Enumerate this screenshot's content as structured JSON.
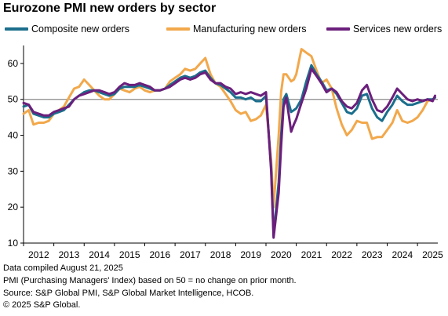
{
  "title": "Eurozone PMI new orders by sector",
  "chart_data": {
    "type": "line",
    "title": "Eurozone PMI new orders by sector",
    "xlabel": "",
    "ylabel": "",
    "x_range": [
      2012.0,
      2025.67
    ],
    "ylim": [
      10,
      65
    ],
    "y_ticks": [
      10,
      20,
      30,
      40,
      50,
      60
    ],
    "x_ticks": [
      "2012",
      "2013",
      "2014",
      "2015",
      "2016",
      "2017",
      "2018",
      "2019",
      "2020",
      "2021",
      "2022",
      "2023",
      "2024",
      "2025"
    ],
    "reference_line": 50,
    "grid": false,
    "legend_position": "top",
    "series": [
      {
        "name": "Composite new orders",
        "color": "#1b6e8c",
        "points": [
          [
            2012.0,
            48
          ],
          [
            2012.17,
            48.5
          ],
          [
            2012.33,
            46
          ],
          [
            2012.5,
            45.5
          ],
          [
            2012.67,
            45
          ],
          [
            2012.83,
            45
          ],
          [
            2013.0,
            46
          ],
          [
            2013.17,
            46.5
          ],
          [
            2013.33,
            47
          ],
          [
            2013.5,
            48.5
          ],
          [
            2013.67,
            50
          ],
          [
            2013.83,
            51
          ],
          [
            2014.0,
            52
          ],
          [
            2014.17,
            52.5
          ],
          [
            2014.33,
            52.5
          ],
          [
            2014.5,
            52
          ],
          [
            2014.67,
            51.5
          ],
          [
            2014.83,
            51
          ],
          [
            2015.0,
            51.5
          ],
          [
            2015.17,
            53
          ],
          [
            2015.33,
            53.5
          ],
          [
            2015.5,
            53.5
          ],
          [
            2015.67,
            53.5
          ],
          [
            2015.83,
            54
          ],
          [
            2016.0,
            53.5
          ],
          [
            2016.17,
            53
          ],
          [
            2016.33,
            52.5
          ],
          [
            2016.5,
            52.5
          ],
          [
            2016.67,
            53
          ],
          [
            2016.83,
            54
          ],
          [
            2017.0,
            55
          ],
          [
            2017.17,
            56
          ],
          [
            2017.33,
            56.5
          ],
          [
            2017.5,
            56
          ],
          [
            2017.67,
            56.5
          ],
          [
            2017.83,
            57.5
          ],
          [
            2018.0,
            58
          ],
          [
            2018.17,
            56
          ],
          [
            2018.33,
            54.5
          ],
          [
            2018.5,
            54
          ],
          [
            2018.67,
            53
          ],
          [
            2018.83,
            52
          ],
          [
            2019.0,
            50.5
          ],
          [
            2019.17,
            50.5
          ],
          [
            2019.33,
            50
          ],
          [
            2019.5,
            50.5
          ],
          [
            2019.67,
            49.5
          ],
          [
            2019.83,
            49.5
          ],
          [
            2020.0,
            51
          ],
          [
            2020.17,
            31
          ],
          [
            2020.25,
            12
          ],
          [
            2020.42,
            27
          ],
          [
            2020.5,
            40
          ],
          [
            2020.58,
            50
          ],
          [
            2020.67,
            51.5
          ],
          [
            2020.83,
            46.5
          ],
          [
            2020.92,
            47
          ],
          [
            2021.0,
            47.5
          ],
          [
            2021.17,
            50
          ],
          [
            2021.33,
            55
          ],
          [
            2021.5,
            59.5
          ],
          [
            2021.67,
            57
          ],
          [
            2021.83,
            55
          ],
          [
            2022.0,
            52.5
          ],
          [
            2022.17,
            53
          ],
          [
            2022.33,
            51.5
          ],
          [
            2022.5,
            49
          ],
          [
            2022.67,
            46.5
          ],
          [
            2022.83,
            46
          ],
          [
            2023.0,
            47.5
          ],
          [
            2023.17,
            51
          ],
          [
            2023.33,
            51.5
          ],
          [
            2023.5,
            47.5
          ],
          [
            2023.67,
            45
          ],
          [
            2023.83,
            44
          ],
          [
            2024.0,
            46.5
          ],
          [
            2024.17,
            48.5
          ],
          [
            2024.33,
            51
          ],
          [
            2024.5,
            49.5
          ],
          [
            2024.67,
            48.5
          ],
          [
            2024.83,
            48.5
          ],
          [
            2025.0,
            49
          ],
          [
            2025.17,
            49.5
          ],
          [
            2025.33,
            50
          ],
          [
            2025.5,
            50
          ],
          [
            2025.58,
            50.5
          ]
        ]
      },
      {
        "name": "Manufacturing new orders",
        "color": "#f2a84b",
        "points": [
          [
            2012.0,
            46
          ],
          [
            2012.17,
            47
          ],
          [
            2012.33,
            43
          ],
          [
            2012.5,
            43.5
          ],
          [
            2012.67,
            43.5
          ],
          [
            2012.83,
            44
          ],
          [
            2013.0,
            46
          ],
          [
            2013.17,
            47
          ],
          [
            2013.33,
            48
          ],
          [
            2013.5,
            50.5
          ],
          [
            2013.67,
            53
          ],
          [
            2013.83,
            53.5
          ],
          [
            2014.0,
            55.5
          ],
          [
            2014.17,
            54
          ],
          [
            2014.33,
            52.5
          ],
          [
            2014.5,
            51
          ],
          [
            2014.67,
            50
          ],
          [
            2014.83,
            50
          ],
          [
            2015.0,
            51.5
          ],
          [
            2015.17,
            53
          ],
          [
            2015.33,
            52.5
          ],
          [
            2015.5,
            52
          ],
          [
            2015.67,
            53
          ],
          [
            2015.83,
            53.5
          ],
          [
            2016.0,
            52.5
          ],
          [
            2016.17,
            52
          ],
          [
            2016.33,
            52.5
          ],
          [
            2016.5,
            52.5
          ],
          [
            2016.67,
            53
          ],
          [
            2016.83,
            55
          ],
          [
            2017.0,
            56
          ],
          [
            2017.17,
            57
          ],
          [
            2017.33,
            58.5
          ],
          [
            2017.5,
            58
          ],
          [
            2017.67,
            58.5
          ],
          [
            2017.83,
            60
          ],
          [
            2018.0,
            61.5
          ],
          [
            2018.17,
            57
          ],
          [
            2018.33,
            54.5
          ],
          [
            2018.5,
            53.5
          ],
          [
            2018.67,
            51.5
          ],
          [
            2018.83,
            49.5
          ],
          [
            2019.0,
            47
          ],
          [
            2019.17,
            46
          ],
          [
            2019.33,
            46.5
          ],
          [
            2019.5,
            44
          ],
          [
            2019.67,
            44.5
          ],
          [
            2019.83,
            45.5
          ],
          [
            2020.0,
            48.5
          ],
          [
            2020.17,
            33
          ],
          [
            2020.25,
            20
          ],
          [
            2020.42,
            40
          ],
          [
            2020.5,
            52
          ],
          [
            2020.58,
            57
          ],
          [
            2020.67,
            57
          ],
          [
            2020.83,
            55
          ],
          [
            2020.92,
            55.5
          ],
          [
            2021.0,
            57
          ],
          [
            2021.17,
            64
          ],
          [
            2021.33,
            63
          ],
          [
            2021.5,
            62
          ],
          [
            2021.67,
            58
          ],
          [
            2021.83,
            54.5
          ],
          [
            2022.0,
            55.5
          ],
          [
            2022.17,
            53
          ],
          [
            2022.33,
            47.5
          ],
          [
            2022.5,
            43
          ],
          [
            2022.67,
            40
          ],
          [
            2022.83,
            41.5
          ],
          [
            2023.0,
            44
          ],
          [
            2023.17,
            43.5
          ],
          [
            2023.33,
            43.5
          ],
          [
            2023.5,
            39
          ],
          [
            2023.67,
            39.5
          ],
          [
            2023.83,
            39.5
          ],
          [
            2024.0,
            41.5
          ],
          [
            2024.17,
            43.5
          ],
          [
            2024.33,
            47
          ],
          [
            2024.5,
            44
          ],
          [
            2024.67,
            43.5
          ],
          [
            2024.83,
            44
          ],
          [
            2025.0,
            45
          ],
          [
            2025.17,
            47
          ],
          [
            2025.33,
            49.5
          ],
          [
            2025.5,
            50
          ],
          [
            2025.58,
            50.5
          ]
        ]
      },
      {
        "name": "Services new orders",
        "color": "#6b1f7c",
        "points": [
          [
            2012.0,
            49
          ],
          [
            2012.17,
            48.5
          ],
          [
            2012.33,
            46.5
          ],
          [
            2012.5,
            46
          ],
          [
            2012.67,
            45.5
          ],
          [
            2012.83,
            45.5
          ],
          [
            2013.0,
            46.5
          ],
          [
            2013.17,
            47
          ],
          [
            2013.33,
            47.5
          ],
          [
            2013.5,
            48
          ],
          [
            2013.67,
            50
          ],
          [
            2013.83,
            51
          ],
          [
            2014.0,
            51.5
          ],
          [
            2014.17,
            52
          ],
          [
            2014.33,
            52.5
          ],
          [
            2014.5,
            52.5
          ],
          [
            2014.67,
            52
          ],
          [
            2014.83,
            51.5
          ],
          [
            2015.0,
            52
          ],
          [
            2015.17,
            53.5
          ],
          [
            2015.33,
            54.5
          ],
          [
            2015.5,
            54
          ],
          [
            2015.67,
            54
          ],
          [
            2015.83,
            54.5
          ],
          [
            2016.0,
            54
          ],
          [
            2016.17,
            53.5
          ],
          [
            2016.33,
            52.5
          ],
          [
            2016.5,
            52.5
          ],
          [
            2016.67,
            53
          ],
          [
            2016.83,
            53.5
          ],
          [
            2017.0,
            54.5
          ],
          [
            2017.17,
            55.5
          ],
          [
            2017.33,
            56
          ],
          [
            2017.5,
            55.5
          ],
          [
            2017.67,
            56
          ],
          [
            2017.83,
            57
          ],
          [
            2018.0,
            57.5
          ],
          [
            2018.17,
            55.5
          ],
          [
            2018.33,
            54.5
          ],
          [
            2018.5,
            54.5
          ],
          [
            2018.67,
            53.5
          ],
          [
            2018.83,
            53
          ],
          [
            2019.0,
            51.5
          ],
          [
            2019.17,
            52
          ],
          [
            2019.33,
            51.5
          ],
          [
            2019.5,
            52
          ],
          [
            2019.67,
            51.5
          ],
          [
            2019.83,
            51
          ],
          [
            2020.0,
            52
          ],
          [
            2020.17,
            30
          ],
          [
            2020.25,
            11.5
          ],
          [
            2020.42,
            24
          ],
          [
            2020.5,
            37
          ],
          [
            2020.58,
            48
          ],
          [
            2020.67,
            50.5
          ],
          [
            2020.83,
            41
          ],
          [
            2020.92,
            43
          ],
          [
            2021.0,
            44.5
          ],
          [
            2021.17,
            49
          ],
          [
            2021.33,
            53
          ],
          [
            2021.5,
            58.5
          ],
          [
            2021.67,
            56.5
          ],
          [
            2021.83,
            54.5
          ],
          [
            2022.0,
            52
          ],
          [
            2022.17,
            53
          ],
          [
            2022.33,
            52
          ],
          [
            2022.5,
            49.5
          ],
          [
            2022.67,
            48
          ],
          [
            2022.83,
            47.5
          ],
          [
            2023.0,
            49
          ],
          [
            2023.17,
            52.5
          ],
          [
            2023.33,
            54
          ],
          [
            2023.5,
            50
          ],
          [
            2023.67,
            47
          ],
          [
            2023.83,
            46.5
          ],
          [
            2024.0,
            48
          ],
          [
            2024.17,
            50.5
          ],
          [
            2024.33,
            53
          ],
          [
            2024.5,
            51.5
          ],
          [
            2024.67,
            50
          ],
          [
            2024.83,
            49.5
          ],
          [
            2025.0,
            50
          ],
          [
            2025.17,
            49.5
          ],
          [
            2025.33,
            50
          ],
          [
            2025.5,
            49.5
          ],
          [
            2025.58,
            51
          ]
        ]
      }
    ]
  },
  "footnotes": [
    "Data compiled August 21, 2025",
    "PMI (Purchasing Managers' Index) based on 50 = no change on prior month.",
    "Source: S&P Global PMI, S&P Global Market Intelligence, HCOB.",
    "© 2025 S&P Global."
  ]
}
